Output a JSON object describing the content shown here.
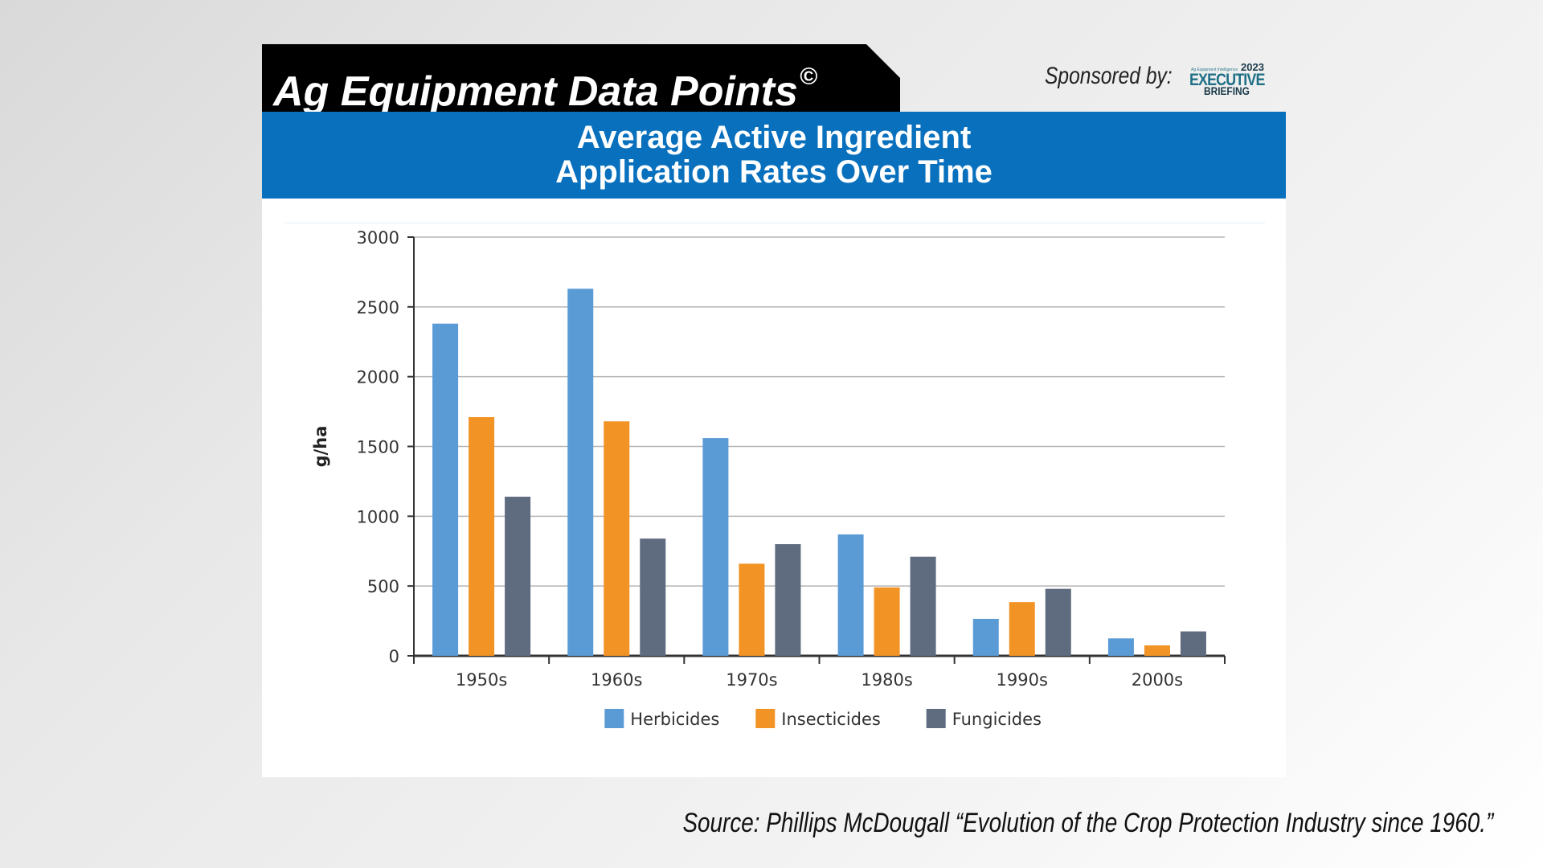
{
  "header": {
    "title": "Ag Equipment Data Points",
    "copyright_mark": "©",
    "sponsor_label": "Sponsored by:",
    "sponsor_logo": {
      "small_text": "Ag Equipment Intelligence",
      "year": "2023",
      "main": "EXECUTIVE",
      "sub": "BRIEFING"
    }
  },
  "source": "Source: Phillips McDougall “Evolution of the Crop Protection Industry since 1960.”",
  "colors": {
    "title_bar": "#0870bd",
    "herbicides": "#5b9bd5",
    "insecticides": "#f29325",
    "fungicides": "#5f6b7f"
  },
  "chart_data": {
    "type": "bar",
    "title": "Average Active Ingredient Application Rates Over Time",
    "title_lines": [
      "Average Active Ingredient",
      "Application Rates Over Time"
    ],
    "xlabel": "",
    "ylabel": "g/ha",
    "categories": [
      "1950s",
      "1960s",
      "1970s",
      "1980s",
      "1990s",
      "2000s"
    ],
    "ylim": [
      0,
      3000
    ],
    "yticks": [
      0,
      500,
      1000,
      1500,
      2000,
      2500,
      3000
    ],
    "grid": true,
    "legend_position": "bottom",
    "series": [
      {
        "name": "Herbicides",
        "color": "#5b9bd5",
        "values": [
          2380,
          2630,
          1560,
          870,
          265,
          125
        ]
      },
      {
        "name": "Insecticides",
        "color": "#f29325",
        "values": [
          1710,
          1680,
          660,
          490,
          385,
          75
        ]
      },
      {
        "name": "Fungicides",
        "color": "#5f6b7f",
        "values": [
          1140,
          840,
          800,
          710,
          480,
          175
        ]
      }
    ]
  }
}
